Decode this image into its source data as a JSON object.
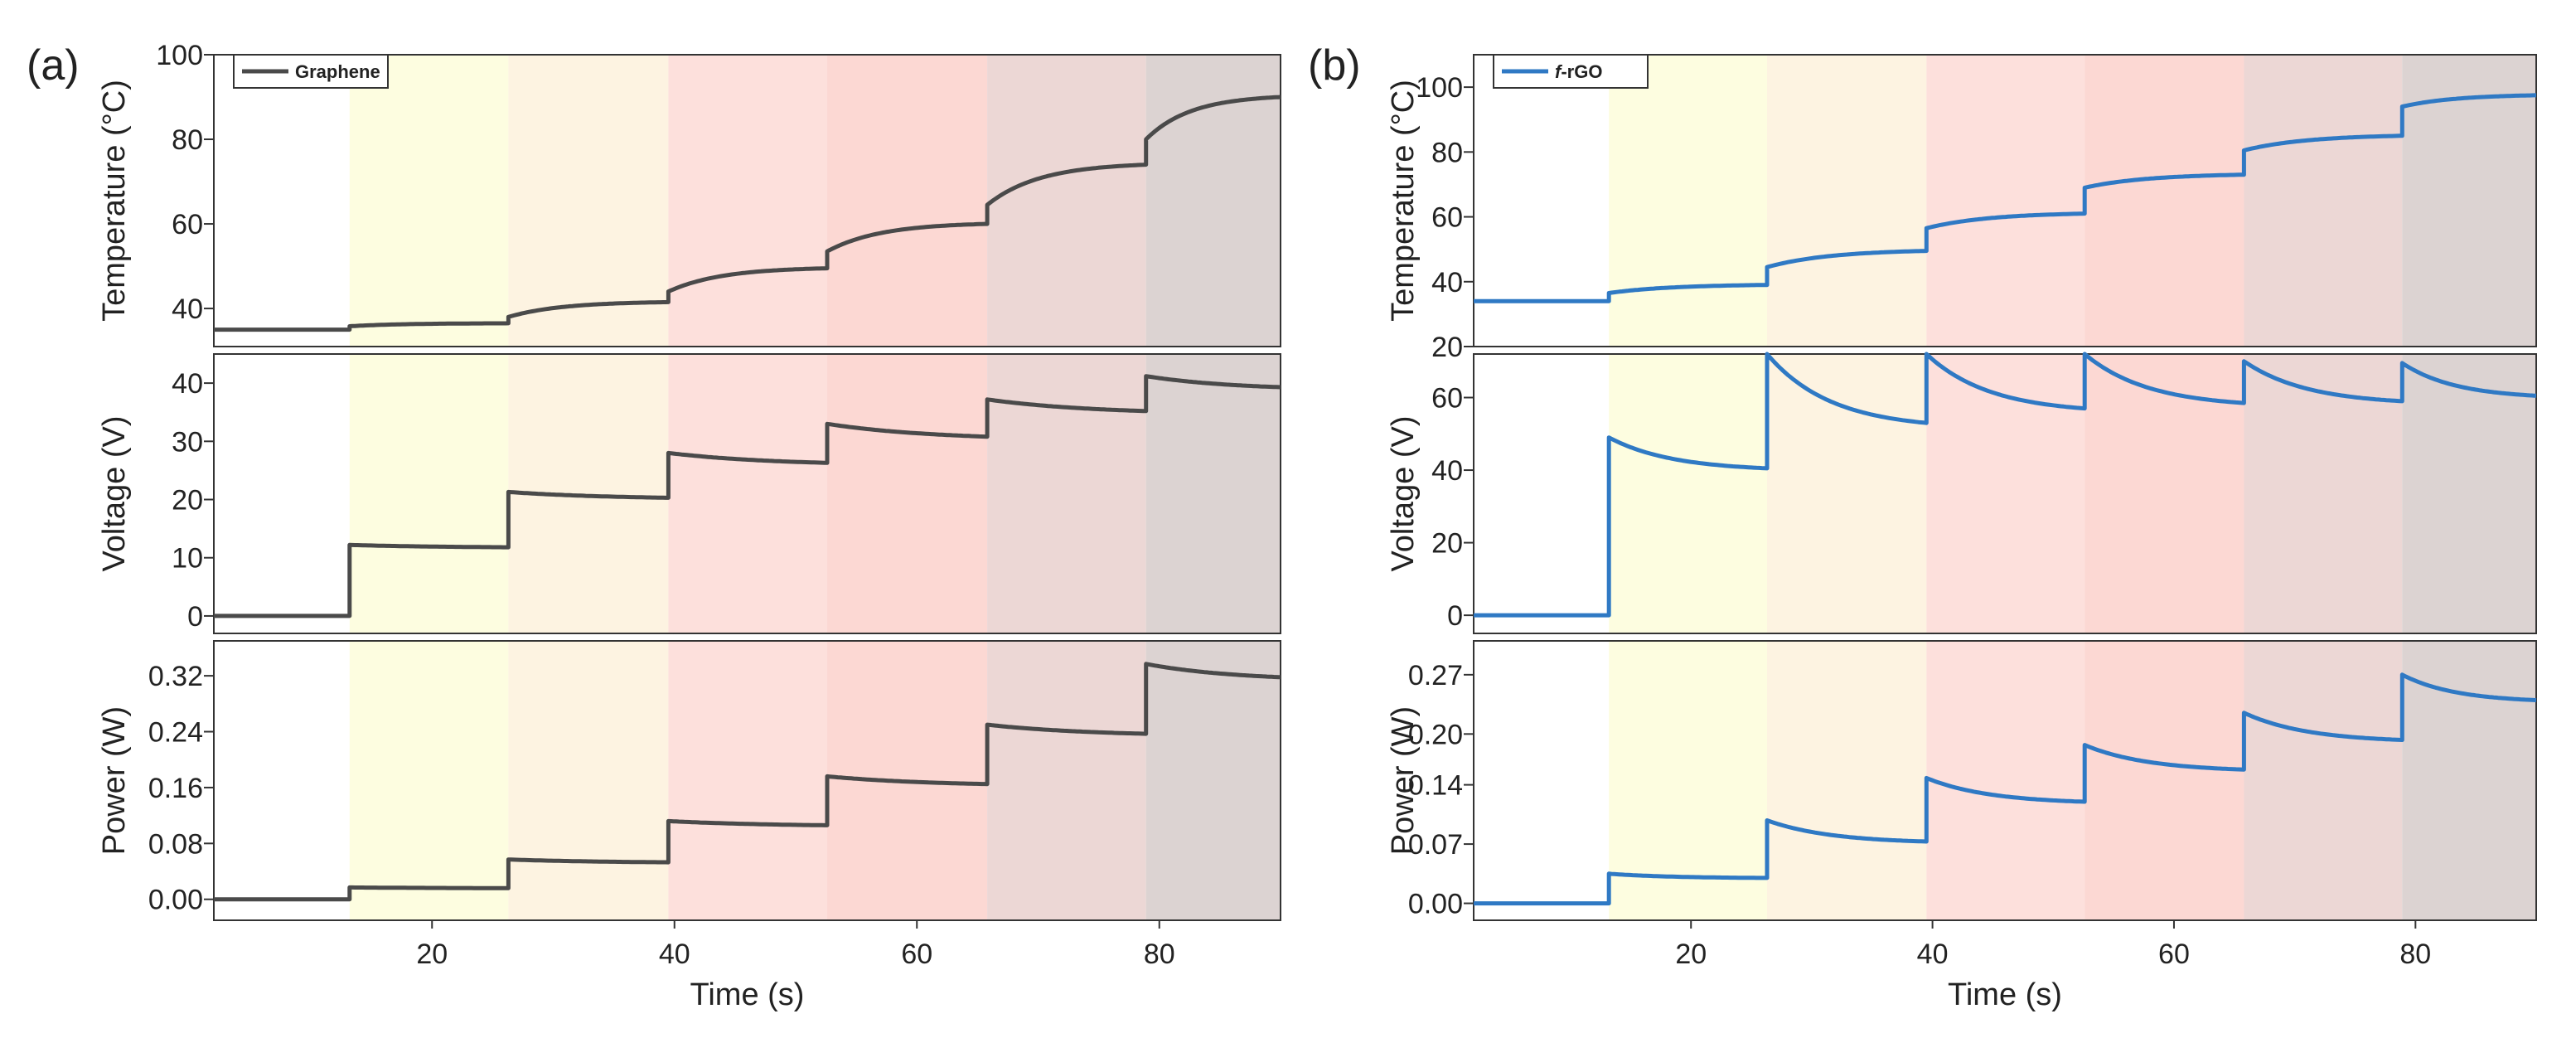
{
  "figure": {
    "colors": {
      "band_colors": [
        "#fdfde0",
        "#fdf3e1",
        "#fde0dc",
        "#fcd8d3",
        "#ecd7d5",
        "#dcd3d2"
      ],
      "axis": "#333333"
    }
  },
  "chart_data": [
    {
      "type": "line",
      "panel_label": "(a)",
      "legend": {
        "label": "Graphene",
        "placement": "top-left"
      },
      "line_color": "#4a4a4a",
      "xlabel": "Time (s)",
      "xlim": [
        2,
        90
      ],
      "x_ticks": [
        20,
        40,
        60,
        80
      ],
      "x_tick_labels": [
        "20",
        "40",
        "60",
        "80"
      ],
      "band_edges": [
        13.2,
        26.3,
        39.5,
        52.6,
        65.8,
        78.9,
        90
      ],
      "subplots": [
        {
          "ylabel": "Temperature (°C)",
          "ylim": [
            31,
            100
          ],
          "y_ticks": [
            40,
            60,
            80,
            100
          ],
          "y_tick_labels": [
            "40",
            "60",
            "80",
            "100"
          ],
          "series": {
            "name": "Graphene",
            "segments": [
              {
                "start": 2,
                "end": 13.2,
                "start_value": 35.0,
                "jump_value": 35.0,
                "end_value": 35.0,
                "decay": 1.0
              },
              {
                "start": 13.2,
                "end": 26.3,
                "start_value": 35.2,
                "jump_value": 35.8,
                "end_value": 36.5,
                "decay": 3.0
              },
              {
                "start": 26.3,
                "end": 39.5,
                "start_value": 36.5,
                "jump_value": 38.0,
                "end_value": 41.5,
                "decay": 3.0
              },
              {
                "start": 39.5,
                "end": 52.6,
                "start_value": 41.5,
                "jump_value": 44.0,
                "end_value": 49.5,
                "decay": 3.0
              },
              {
                "start": 52.6,
                "end": 65.8,
                "start_value": 49.5,
                "jump_value": 53.5,
                "end_value": 60.0,
                "decay": 3.0
              },
              {
                "start": 65.8,
                "end": 78.9,
                "start_value": 60.0,
                "jump_value": 64.5,
                "end_value": 74.0,
                "decay": 3.0
              },
              {
                "start": 78.9,
                "end": 90,
                "start_value": 74.0,
                "jump_value": 80.0,
                "end_value": 90.0,
                "decay": 3.0
              }
            ]
          }
        },
        {
          "ylabel": "Voltage (V)",
          "ylim": [
            -3,
            45
          ],
          "y_ticks": [
            0,
            10,
            20,
            30,
            40
          ],
          "y_tick_labels": [
            "0",
            "10",
            "20",
            "30",
            "40"
          ],
          "series": {
            "name": "Graphene",
            "segments": [
              {
                "start": 2,
                "end": 13.2,
                "start_value": 0,
                "jump_value": 0,
                "end_value": 0,
                "decay": 1.0
              },
              {
                "start": 13.2,
                "end": 26.3,
                "start_value": 0,
                "jump_value": 12.2,
                "end_value": 11.8,
                "decay": 1.5
              },
              {
                "start": 26.3,
                "end": 39.5,
                "start_value": 11.8,
                "jump_value": 21.3,
                "end_value": 20.3,
                "decay": 1.5
              },
              {
                "start": 39.5,
                "end": 52.6,
                "start_value": 20.3,
                "jump_value": 28.0,
                "end_value": 26.3,
                "decay": 1.5
              },
              {
                "start": 52.6,
                "end": 65.8,
                "start_value": 26.3,
                "jump_value": 33.0,
                "end_value": 30.8,
                "decay": 1.5
              },
              {
                "start": 65.8,
                "end": 78.9,
                "start_value": 30.8,
                "jump_value": 37.2,
                "end_value": 35.2,
                "decay": 1.5
              },
              {
                "start": 78.9,
                "end": 90,
                "start_value": 35.2,
                "jump_value": 41.2,
                "end_value": 39.3,
                "decay": 1.5
              }
            ]
          }
        },
        {
          "ylabel": "Power (W)",
          "ylim": [
            -0.03,
            0.37
          ],
          "y_ticks": [
            0.0,
            0.08,
            0.16,
            0.24,
            0.32
          ],
          "y_tick_labels": [
            "0.00",
            "0.08",
            "0.16",
            "0.24",
            "0.32"
          ],
          "series": {
            "name": "Graphene",
            "segments": [
              {
                "start": 2,
                "end": 13.2,
                "start_value": 0,
                "jump_value": 0,
                "end_value": 0,
                "decay": 1.0
              },
              {
                "start": 13.2,
                "end": 26.3,
                "start_value": 0,
                "jump_value": 0.017,
                "end_value": 0.016,
                "decay": 1.5
              },
              {
                "start": 26.3,
                "end": 39.5,
                "start_value": 0.016,
                "jump_value": 0.057,
                "end_value": 0.053,
                "decay": 1.5
              },
              {
                "start": 39.5,
                "end": 52.6,
                "start_value": 0.053,
                "jump_value": 0.112,
                "end_value": 0.106,
                "decay": 1.5
              },
              {
                "start": 52.6,
                "end": 65.8,
                "start_value": 0.106,
                "jump_value": 0.176,
                "end_value": 0.165,
                "decay": 1.5
              },
              {
                "start": 65.8,
                "end": 78.9,
                "start_value": 0.165,
                "jump_value": 0.25,
                "end_value": 0.237,
                "decay": 1.5
              },
              {
                "start": 78.9,
                "end": 90,
                "start_value": 0.237,
                "jump_value": 0.337,
                "end_value": 0.318,
                "decay": 1.5
              }
            ]
          }
        }
      ]
    },
    {
      "type": "line",
      "panel_label": "(b)",
      "legend": {
        "label_prefix": "f",
        "label_suffix": "-rGO",
        "placement": "top-left"
      },
      "line_color": "#2f79c4",
      "xlabel": "Time (s)",
      "xlim": [
        2,
        90
      ],
      "x_ticks": [
        20,
        40,
        60,
        80
      ],
      "x_tick_labels": [
        "20",
        "40",
        "60",
        "80"
      ],
      "band_edges": [
        13.2,
        26.3,
        39.5,
        52.6,
        65.8,
        78.9,
        90
      ],
      "subplots": [
        {
          "ylabel": "Temperature (°C)",
          "ylim": [
            20,
            110
          ],
          "y_ticks": [
            20,
            40,
            60,
            80,
            100
          ],
          "y_tick_labels": [
            "20",
            "40",
            "60",
            "80",
            "100"
          ],
          "series": {
            "name": "f-rGO",
            "segments": [
              {
                "start": 2,
                "end": 13.2,
                "start_value": 34.0,
                "jump_value": 34.0,
                "end_value": 34.0,
                "decay": 1.0
              },
              {
                "start": 13.2,
                "end": 26.3,
                "start_value": 34.0,
                "jump_value": 36.5,
                "end_value": 39.0,
                "decay": 2.5
              },
              {
                "start": 26.3,
                "end": 39.5,
                "start_value": 39.0,
                "jump_value": 44.5,
                "end_value": 49.5,
                "decay": 2.5
              },
              {
                "start": 39.5,
                "end": 52.6,
                "start_value": 49.5,
                "jump_value": 56.5,
                "end_value": 61.0,
                "decay": 2.5
              },
              {
                "start": 52.6,
                "end": 65.8,
                "start_value": 61.0,
                "jump_value": 69.0,
                "end_value": 73.0,
                "decay": 2.5
              },
              {
                "start": 65.8,
                "end": 78.9,
                "start_value": 73.0,
                "jump_value": 80.5,
                "end_value": 85.0,
                "decay": 2.5
              },
              {
                "start": 78.9,
                "end": 90,
                "start_value": 85.0,
                "jump_value": 94.0,
                "end_value": 97.5,
                "decay": 2.5
              }
            ]
          }
        },
        {
          "ylabel": "Voltage (V)",
          "ylim": [
            -5,
            72
          ],
          "y_ticks": [
            0,
            20,
            40,
            60
          ],
          "y_tick_labels": [
            "0",
            "20",
            "40",
            "60"
          ],
          "series": {
            "name": "f-rGO",
            "segments": [
              {
                "start": 2,
                "end": 13.2,
                "start_value": 0,
                "jump_value": 0,
                "end_value": 0,
                "decay": 1.0
              },
              {
                "start": 13.2,
                "end": 26.3,
                "start_value": 0,
                "jump_value": 49.0,
                "end_value": 40.5,
                "decay": 2.5
              },
              {
                "start": 26.3,
                "end": 39.5,
                "start_value": 40.5,
                "jump_value": 72.0,
                "end_value": 53.0,
                "decay": 2.5
              },
              {
                "start": 39.5,
                "end": 52.6,
                "start_value": 53.0,
                "jump_value": 72.0,
                "end_value": 57.0,
                "decay": 2.5
              },
              {
                "start": 52.6,
                "end": 65.8,
                "start_value": 57.0,
                "jump_value": 72.0,
                "end_value": 58.5,
                "decay": 2.5
              },
              {
                "start": 65.8,
                "end": 78.9,
                "start_value": 58.5,
                "jump_value": 70.0,
                "end_value": 59.0,
                "decay": 2.5
              },
              {
                "start": 78.9,
                "end": 90,
                "start_value": 59.0,
                "jump_value": 69.5,
                "end_value": 60.5,
                "decay": 2.5
              }
            ]
          }
        },
        {
          "ylabel": "Power (W)",
          "ylim": [
            -0.02,
            0.31
          ],
          "y_ticks": [
            0.0,
            0.07,
            0.14,
            0.2,
            0.27
          ],
          "y_tick_labels": [
            "0.00",
            "0.07",
            "0.14",
            "0.20",
            "0.27"
          ],
          "series": {
            "name": "f-rGO",
            "segments": [
              {
                "start": 2,
                "end": 13.2,
                "start_value": 0,
                "jump_value": 0,
                "end_value": 0,
                "decay": 1.0
              },
              {
                "start": 13.2,
                "end": 26.3,
                "start_value": 0,
                "jump_value": 0.035,
                "end_value": 0.03,
                "decay": 2.5
              },
              {
                "start": 26.3,
                "end": 39.5,
                "start_value": 0.03,
                "jump_value": 0.098,
                "end_value": 0.073,
                "decay": 2.5
              },
              {
                "start": 39.5,
                "end": 52.6,
                "start_value": 0.073,
                "jump_value": 0.148,
                "end_value": 0.12,
                "decay": 2.5
              },
              {
                "start": 52.6,
                "end": 65.8,
                "start_value": 0.12,
                "jump_value": 0.187,
                "end_value": 0.158,
                "decay": 2.5
              },
              {
                "start": 65.8,
                "end": 78.9,
                "start_value": 0.158,
                "jump_value": 0.225,
                "end_value": 0.193,
                "decay": 2.5
              },
              {
                "start": 78.9,
                "end": 90,
                "start_value": 0.193,
                "jump_value": 0.27,
                "end_value": 0.24,
                "decay": 2.5
              }
            ]
          }
        }
      ]
    }
  ]
}
